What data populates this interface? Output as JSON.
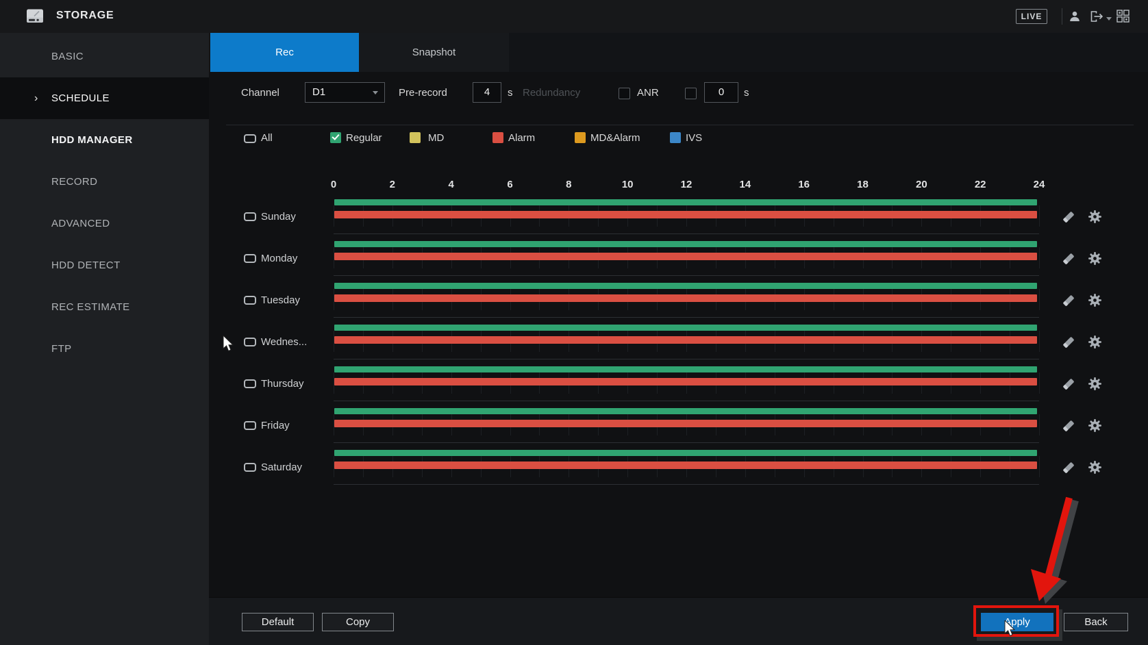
{
  "titlebar": {
    "title": "STORAGE",
    "live_label": "LIVE",
    "icons": [
      "hdd-icon",
      "user-icon",
      "logout-icon",
      "view-layout-icon"
    ]
  },
  "sidebar": {
    "items": [
      {
        "label": "BASIC",
        "active": false,
        "bright": false
      },
      {
        "label": "SCHEDULE",
        "active": true,
        "bright": false
      },
      {
        "label": "HDD MANAGER",
        "active": false,
        "bright": true
      },
      {
        "label": "RECORD",
        "active": false,
        "bright": false
      },
      {
        "label": "ADVANCED",
        "active": false,
        "bright": false
      },
      {
        "label": "HDD DETECT",
        "active": false,
        "bright": false
      },
      {
        "label": "REC ESTIMATE",
        "active": false,
        "bright": false
      },
      {
        "label": "FTP",
        "active": false,
        "bright": false
      }
    ]
  },
  "tabs": [
    {
      "label": "Rec",
      "active": true
    },
    {
      "label": "Snapshot",
      "active": false
    }
  ],
  "options": {
    "channel_label": "Channel",
    "channel_value": "D1",
    "prerecord_label": "Pre-record",
    "prerecord_value": "4",
    "prerecord_unit": "s",
    "redundancy_label": "Redundancy",
    "redundancy_checked": false,
    "anr_label": "ANR",
    "anr_checked": false,
    "anr_value": "0",
    "anr_unit": "s"
  },
  "legend": {
    "all_label": "All",
    "items": [
      {
        "label": "Regular",
        "color": "#30a471",
        "checked": true
      },
      {
        "label": "MD",
        "color": "#d2c35c",
        "checked": false
      },
      {
        "label": "Alarm",
        "color": "#da4f42",
        "checked": false
      },
      {
        "label": "MD&Alarm",
        "color": "#dd9a1f",
        "checked": false
      },
      {
        "label": "IVS",
        "color": "#3c87c8",
        "checked": false
      }
    ]
  },
  "schedule": {
    "axis": {
      "start": 0,
      "end": 24,
      "label_step": 2,
      "tick_labels": [
        "0",
        "2",
        "4",
        "6",
        "8",
        "10",
        "12",
        "14",
        "16",
        "18",
        "20",
        "22",
        "24"
      ]
    },
    "days": [
      {
        "label": "Sunday",
        "bars": [
          {
            "type": "Regular",
            "start": 0,
            "end": 24
          },
          {
            "type": "Alarm",
            "start": 0,
            "end": 24
          }
        ]
      },
      {
        "label": "Monday",
        "bars": [
          {
            "type": "Regular",
            "start": 0,
            "end": 24
          },
          {
            "type": "Alarm",
            "start": 0,
            "end": 24
          }
        ]
      },
      {
        "label": "Tuesday",
        "bars": [
          {
            "type": "Regular",
            "start": 0,
            "end": 24
          },
          {
            "type": "Alarm",
            "start": 0,
            "end": 24
          }
        ]
      },
      {
        "label": "Wednes...",
        "bars": [
          {
            "type": "Regular",
            "start": 0,
            "end": 24
          },
          {
            "type": "Alarm",
            "start": 0,
            "end": 24
          }
        ]
      },
      {
        "label": "Thursday",
        "bars": [
          {
            "type": "Regular",
            "start": 0,
            "end": 24
          },
          {
            "type": "Alarm",
            "start": 0,
            "end": 24
          }
        ]
      },
      {
        "label": "Friday",
        "bars": [
          {
            "type": "Regular",
            "start": 0,
            "end": 24
          },
          {
            "type": "Alarm",
            "start": 0,
            "end": 24
          }
        ]
      },
      {
        "label": "Saturday",
        "bars": [
          {
            "type": "Regular",
            "start": 0,
            "end": 24
          },
          {
            "type": "Alarm",
            "start": 0,
            "end": 24
          }
        ]
      }
    ],
    "row_icons": [
      "edit-pencil-icon",
      "gear-icon"
    ]
  },
  "footer": {
    "default_label": "Default",
    "copy_label": "Copy",
    "apply_label": "Apply",
    "back_label": "Back"
  },
  "annotations": {
    "highlight_box_color": "#e2150d",
    "arrow_color": "#e2150d",
    "arrow_target": "apply-button",
    "cursors": 2
  }
}
